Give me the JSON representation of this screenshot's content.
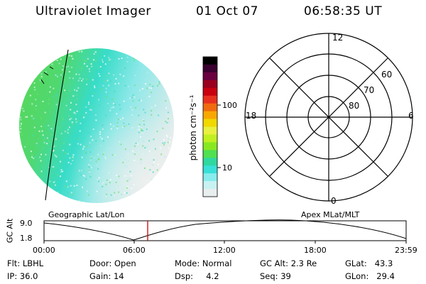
{
  "header": {
    "instrument": "Ultraviolet Imager",
    "date": "01 Oct 07",
    "time": "06:58:35 UT"
  },
  "colorbar": {
    "label": "photon cm⁻²s⁻¹",
    "ticks": [
      "100",
      "10"
    ],
    "colors": [
      "#000000",
      "#3a0030",
      "#6a0040",
      "#9a0020",
      "#c80010",
      "#e83020",
      "#f06a10",
      "#f8a800",
      "#f0d800",
      "#e8f040",
      "#c0f020",
      "#88e820",
      "#50e050",
      "#30d8a0",
      "#38e0d8",
      "#88ecec",
      "#c8f2f2",
      "#e8eeee"
    ]
  },
  "polar_plot": {
    "mlt_labels": [
      "12",
      "18",
      "6",
      "0"
    ],
    "lat_labels": [
      "60",
      "70",
      "80"
    ]
  },
  "coordinate_labels": {
    "left": "Geographic Lat/Lon",
    "right": "Apex MLat/MLT"
  },
  "altitude_plot": {
    "ylabel": "GC Alt",
    "y_ticks": [
      "9.0",
      "1.8"
    ],
    "x_ticks": [
      "00:00",
      "06:00",
      "12:00",
      "18:00",
      "23:59"
    ],
    "marker_color": "#cc0000"
  },
  "status": {
    "flt": "Flt: LBHL",
    "ip": "IP: 36.0",
    "door": "Door: Open",
    "gain": "Gain: 14",
    "mode": "Mode: Normal",
    "dsp": "Dsp:     4.2",
    "gc_alt": "GC Alt: 2.3 Re",
    "seq": "Seq: 39",
    "glat": "GLat:   43.3",
    "glon": "GLon:   29.4"
  }
}
